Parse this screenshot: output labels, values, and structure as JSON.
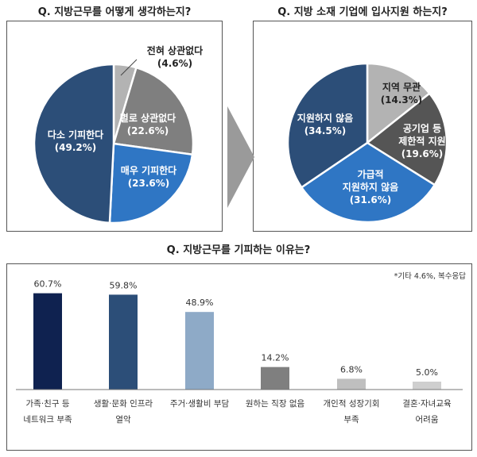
{
  "colors": {
    "dark_navy": "#0f2250",
    "navy": "#2c4e78",
    "steel_blue": "#285d9b",
    "bright_blue": "#2f76c4",
    "light_steel": "#8eaac7",
    "gray": "#7f7f7f",
    "dark_gray": "#555555",
    "light_gray": "#bfbfbf",
    "lighter_gray": "#cfcfcf",
    "arrow": "#9a9a9a"
  },
  "chart_data": [
    {
      "type": "pie",
      "title": "Q. 지방근무를 어떻게 생각하는지?",
      "slices": [
        {
          "label_lines": [
            "전혀 상관없다",
            "(4.6%)"
          ],
          "value": 4.6,
          "color": "#b3b3b3",
          "label_color": "#222222"
        },
        {
          "label_lines": [
            "별로 상관없다",
            "(22.6%)"
          ],
          "value": 22.6,
          "color": "#7f7f7f",
          "label_color": "#ffffff"
        },
        {
          "label_lines": [
            "매우 기피한다",
            "(23.6%)"
          ],
          "value": 23.6,
          "color": "#2f76c4",
          "label_color": "#ffffff"
        },
        {
          "label_lines": [
            "다소 기피한다",
            "(49.2%)"
          ],
          "value": 49.2,
          "color": "#2c4e78",
          "label_color": "#ffffff"
        }
      ]
    },
    {
      "type": "pie",
      "title": "Q. 지방 소재 기업에 입사지원 하는지?",
      "slices": [
        {
          "label_lines": [
            "지역 무관",
            "(14.3%)"
          ],
          "value": 14.3,
          "color": "#b3b3b3",
          "label_color": "#222222"
        },
        {
          "label_lines": [
            "공기업 등",
            "제한적 지원",
            "(19.6%)"
          ],
          "value": 19.6,
          "color": "#555555",
          "label_color": "#ffffff"
        },
        {
          "label_lines": [
            "가급적",
            "지원하지 않음",
            "(31.6%)"
          ],
          "value": 31.6,
          "color": "#2f76c4",
          "label_color": "#ffffff"
        },
        {
          "label_lines": [
            "지원하지 않음",
            "(34.5%)"
          ],
          "value": 34.5,
          "color": "#2c4e78",
          "label_color": "#ffffff"
        }
      ]
    },
    {
      "type": "bar",
      "title": "Q. 지방근무를 기피하는 이유는?",
      "note": "*기타 4.6%, 복수응답",
      "ylim": [
        0,
        70
      ],
      "categories": [
        [
          "가족·친구 등",
          "네트워크 부족"
        ],
        [
          "생활·문화 인프라",
          "열악"
        ],
        [
          "주거·생활비 부담"
        ],
        [
          "원하는 직장 없음"
        ],
        [
          "개인적 성장기회",
          "부족"
        ],
        [
          "결혼·자녀교육",
          "어려움"
        ]
      ],
      "values": [
        60.7,
        59.8,
        48.9,
        14.2,
        6.8,
        5.0
      ],
      "value_labels": [
        "60.7%",
        "59.8%",
        "48.9%",
        "14.2%",
        "6.8%",
        "5.0%"
      ],
      "colors": [
        "#0f2250",
        "#2c4e78",
        "#8eaac7",
        "#7f7f7f",
        "#bfbfbf",
        "#cfcfcf"
      ]
    }
  ]
}
